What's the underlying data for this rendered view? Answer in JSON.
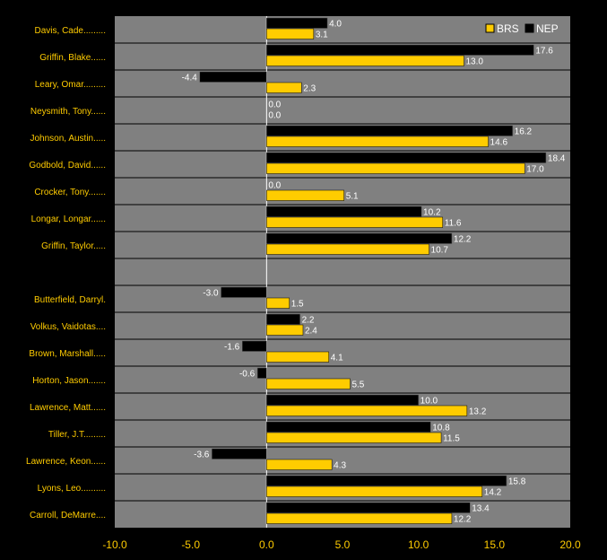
{
  "chart_data": {
    "type": "bar",
    "orientation": "horizontal",
    "categories": [
      "Davis, Cade.........",
      "Griffin, Blake......",
      "Leary, Omar.........",
      "Neysmith, Tony......",
      "Johnson, Austin.....",
      "Godbold, David......",
      "Crocker, Tony.......",
      "Longar, Longar......",
      "Griffin, Taylor.....",
      "",
      "Butterfield, Darryl.",
      "Volkus, Vaidotas....",
      "Brown, Marshall.....",
      "Horton, Jason.......",
      "Lawrence, Matt......",
      "Tiller, J.T.........",
      "Lawrence, Keon......",
      "Lyons, Leo..........",
      "Carroll, DeMarre...."
    ],
    "series": [
      {
        "name": "NEP",
        "color": "#000000",
        "values": [
          4.0,
          17.6,
          -4.4,
          0.0,
          16.2,
          18.4,
          0.0,
          10.2,
          12.2,
          null,
          -3.0,
          2.2,
          -1.6,
          -0.6,
          10.0,
          10.8,
          -3.6,
          15.8,
          13.4
        ]
      },
      {
        "name": "BRS",
        "color": "#ffcc00",
        "values": [
          3.1,
          13.0,
          2.3,
          0.0,
          14.6,
          17.0,
          5.1,
          11.6,
          10.7,
          null,
          1.5,
          2.4,
          4.1,
          5.5,
          13.2,
          11.5,
          4.3,
          14.2,
          12.2
        ]
      }
    ],
    "xlim": [
      -10.0,
      20.0
    ],
    "xticks": [
      "-10.0",
      "-5.0",
      "0.0",
      "5.0",
      "10.0",
      "15.0",
      "20.0"
    ],
    "legend": {
      "placement": "top-right",
      "items": [
        "BRS",
        "NEP"
      ]
    },
    "grid": "horizontal row separators",
    "plot_bg": "#808080",
    "page_bg": "#000000"
  }
}
